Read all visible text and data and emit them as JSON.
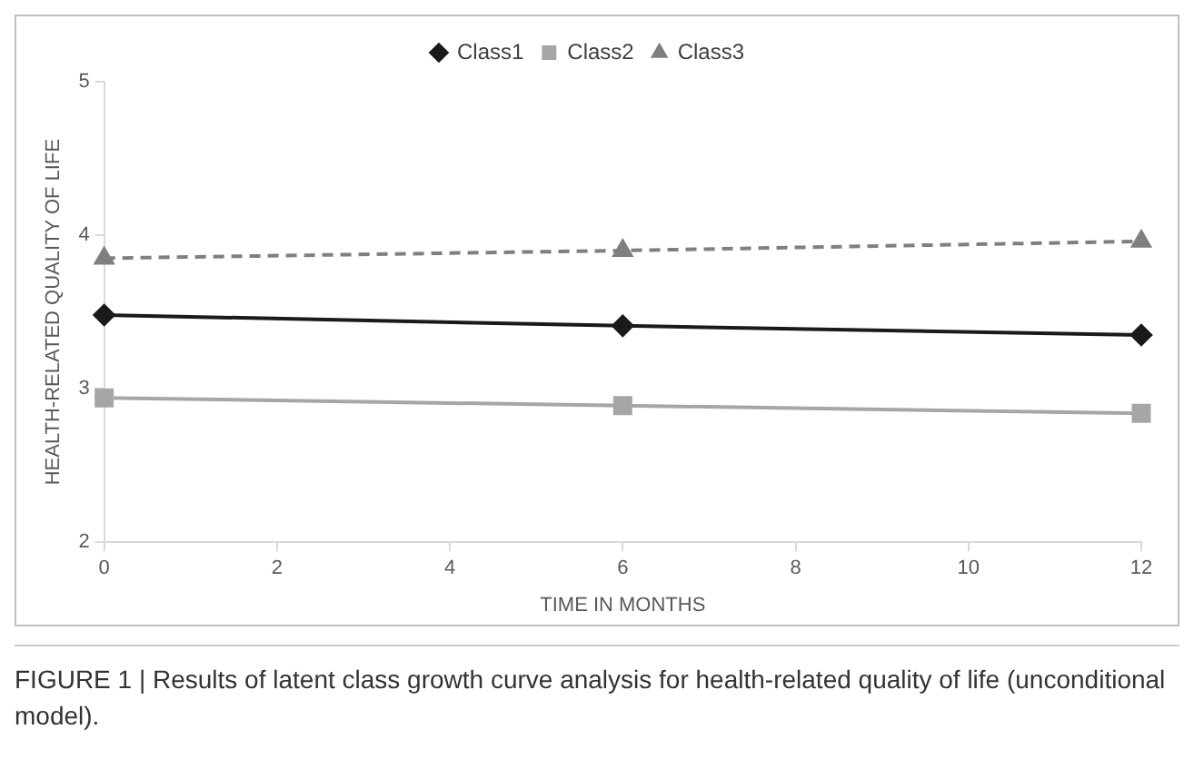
{
  "chart_data": {
    "type": "line",
    "xlabel": "TIME IN MONTHS",
    "ylabel": "HEALTH-RELATED QUALITY OF LIFE",
    "x": [
      0,
      6,
      12
    ],
    "series": [
      {
        "name": "Class1",
        "color": "#1a1a1a",
        "values": [
          3.48,
          3.41,
          3.35
        ],
        "marker": "diamond",
        "line_style": "solid"
      },
      {
        "name": "Class2",
        "color": "#a6a6a6",
        "values": [
          2.94,
          2.89,
          2.84
        ],
        "marker": "square",
        "line_style": "solid"
      },
      {
        "name": "Class3",
        "color": "#7f7f7f",
        "values": [
          3.85,
          3.9,
          3.96
        ],
        "marker": "triangle",
        "line_style": "dashed"
      }
    ],
    "xlim": [
      0,
      12
    ],
    "xticks": [
      0,
      2,
      4,
      6,
      8,
      10,
      12
    ],
    "ylim": [
      2,
      5
    ],
    "yticks": [
      2,
      3,
      4,
      5
    ],
    "grid": false,
    "legend": "top",
    "annotations": [
      "FIGURE 1 | Results of latent class growth curve analysis for health-related quality of life (unconditional model)."
    ]
  }
}
